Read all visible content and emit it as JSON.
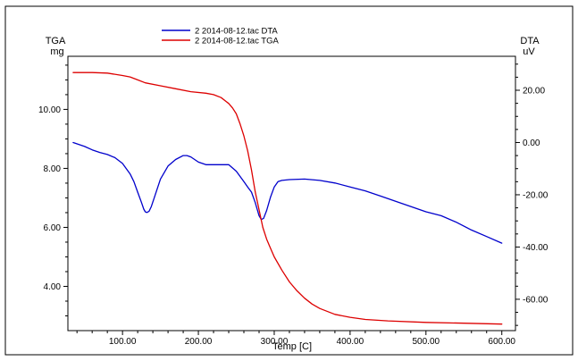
{
  "chart_data": {
    "type": "line",
    "xlabel": "Temp  [C]",
    "x_ticks": [
      "100.00",
      "200.00",
      "300.00",
      "400.00",
      "500.00",
      "600.00"
    ],
    "xlim": [
      28,
      618
    ],
    "left_axis": {
      "label": "TGA",
      "unit": "mg",
      "ylim": [
        2.5,
        11.8
      ],
      "ticks": [
        "4.00",
        "6.00",
        "8.00",
        "10.00"
      ]
    },
    "right_axis": {
      "label": "DTA",
      "unit": "uV",
      "ylim": [
        -72,
        33
      ],
      "ticks": [
        "20.00",
        "0.00",
        "-20.00",
        "-40.00",
        "-60.00"
      ]
    },
    "legend_position": "top-left",
    "series": [
      {
        "name": "2 2014-08-12.tac DTA",
        "axis": "right",
        "color": "#0000cc",
        "x": [
          35,
          50,
          60,
          70,
          80,
          90,
          100,
          110,
          115,
          120,
          125,
          128,
          130,
          132,
          135,
          138,
          142,
          150,
          160,
          170,
          180,
          185,
          190,
          200,
          210,
          220,
          230,
          240,
          250,
          255,
          260,
          265,
          270,
          275,
          280,
          283,
          286,
          290,
          295,
          300,
          305,
          310,
          320,
          340,
          360,
          380,
          400,
          420,
          440,
          460,
          480,
          500,
          520,
          540,
          560,
          580,
          600
        ],
        "y": [
          0.0,
          -1.5,
          -2.8,
          -3.8,
          -4.6,
          -5.8,
          -8.0,
          -12.0,
          -15.0,
          -19.0,
          -23.0,
          -25.5,
          -26.5,
          -26.8,
          -26.3,
          -24.5,
          -21.0,
          -14.0,
          -9.0,
          -6.5,
          -5.0,
          -5.0,
          -5.5,
          -7.5,
          -8.5,
          -8.5,
          -8.5,
          -8.5,
          -11.0,
          -13.0,
          -15.0,
          -17.0,
          -19.0,
          -23.0,
          -28.0,
          -29.5,
          -29.0,
          -26.0,
          -21.0,
          -17.0,
          -15.0,
          -14.5,
          -14.2,
          -14.0,
          -14.5,
          -15.5,
          -17.0,
          -18.5,
          -20.5,
          -22.5,
          -24.5,
          -26.5,
          -28.0,
          -30.5,
          -33.5,
          -36.0,
          -38.5
        ]
      },
      {
        "name": "2 2014-08-12.tac TGA",
        "axis": "left",
        "color": "#dd0000",
        "x": [
          35,
          60,
          80,
          100,
          110,
          120,
          130,
          150,
          170,
          190,
          210,
          220,
          230,
          240,
          245,
          250,
          255,
          260,
          265,
          270,
          275,
          280,
          285,
          290,
          295,
          300,
          310,
          320,
          330,
          340,
          350,
          360,
          380,
          400,
          420,
          450,
          500,
          550,
          600
        ],
        "y": [
          11.25,
          11.25,
          11.23,
          11.15,
          11.1,
          11.0,
          10.9,
          10.8,
          10.7,
          10.6,
          10.55,
          10.5,
          10.4,
          10.2,
          10.05,
          9.85,
          9.5,
          9.1,
          8.6,
          7.95,
          7.2,
          6.6,
          6.0,
          5.6,
          5.3,
          5.0,
          4.55,
          4.15,
          3.85,
          3.6,
          3.4,
          3.25,
          3.05,
          2.95,
          2.88,
          2.83,
          2.78,
          2.75,
          2.72
        ]
      }
    ]
  }
}
